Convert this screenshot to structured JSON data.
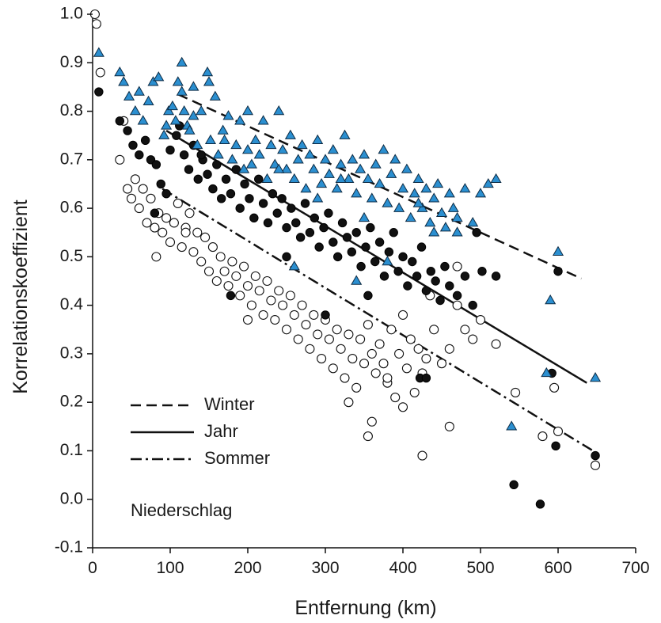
{
  "chart_data": {
    "type": "scatter",
    "title": "",
    "xlabel": "Entfernung (km)",
    "ylabel": "Korrelationskoeffizient",
    "xlim": [
      0,
      700
    ],
    "ylim": [
      -0.1,
      1.0
    ],
    "xticks": [
      "0",
      "100",
      "200",
      "300",
      "400",
      "500",
      "600",
      "700"
    ],
    "yticks": [
      "-0.1",
      "0.0",
      "0.1",
      "0.2",
      "0.3",
      "0.4",
      "0.5",
      "0.6",
      "0.7",
      "0.8",
      "0.9",
      "1.0"
    ],
    "grid": false,
    "legend": {
      "position": "lower-left",
      "entries": [
        {
          "label": "Winter",
          "style": "dashed"
        },
        {
          "label": "Jahr",
          "style": "solid"
        },
        {
          "label": "Sommer",
          "style": "dash-dot"
        }
      ]
    },
    "annotation": "Niederschlag",
    "colors": {
      "winter_marker": "#2b8fd0",
      "jahr_marker": "#111111",
      "sommer_marker": "#ffffff",
      "line": "#111111"
    },
    "trend_lines": [
      {
        "label": "Winter",
        "style": "dashed",
        "x": [
          110,
          630
        ],
        "y": [
          0.835,
          0.455
        ]
      },
      {
        "label": "Jahr",
        "style": "solid",
        "x": [
          95,
          637
        ],
        "y": [
          0.76,
          0.24
        ]
      },
      {
        "label": "Sommer",
        "style": "dash-dot",
        "x": [
          90,
          645
        ],
        "y": [
          0.64,
          0.1
        ]
      }
    ],
    "series": [
      {
        "label": "Winter",
        "marker": "triangle",
        "x": [
          8,
          35,
          40,
          47,
          55,
          60,
          65,
          72,
          78,
          85,
          92,
          98,
          103,
          107,
          110,
          115,
          118,
          122,
          125,
          130,
          135,
          140,
          148,
          152,
          158,
          162,
          168,
          175,
          180,
          185,
          190,
          195,
          200,
          205,
          210,
          215,
          220,
          225,
          230,
          235,
          240,
          245,
          250,
          255,
          260,
          265,
          270,
          275,
          280,
          285,
          290,
          295,
          300,
          305,
          310,
          315,
          320,
          325,
          330,
          335,
          340,
          345,
          350,
          355,
          360,
          365,
          370,
          375,
          380,
          385,
          390,
          395,
          400,
          405,
          410,
          415,
          420,
          425,
          430,
          435,
          440,
          445,
          450,
          455,
          460,
          465,
          470,
          480,
          490,
          500,
          510,
          520,
          115,
          150,
          260,
          340,
          380,
          540,
          585,
          590,
          600,
          648,
          95,
          130,
          170,
          240,
          290,
          350,
          420,
          470,
          200,
          320,
          440
        ],
        "y": [
          0.92,
          0.88,
          0.86,
          0.83,
          0.8,
          0.84,
          0.78,
          0.82,
          0.86,
          0.87,
          0.75,
          0.8,
          0.81,
          0.78,
          0.86,
          0.9,
          0.8,
          0.77,
          0.76,
          0.85,
          0.73,
          0.8,
          0.88,
          0.74,
          0.83,
          0.71,
          0.76,
          0.79,
          0.7,
          0.73,
          0.78,
          0.68,
          0.8,
          0.69,
          0.74,
          0.71,
          0.78,
          0.66,
          0.73,
          0.69,
          0.8,
          0.72,
          0.68,
          0.75,
          0.66,
          0.7,
          0.73,
          0.64,
          0.71,
          0.68,
          0.74,
          0.65,
          0.7,
          0.67,
          0.72,
          0.64,
          0.69,
          0.75,
          0.66,
          0.7,
          0.63,
          0.68,
          0.71,
          0.66,
          0.62,
          0.69,
          0.65,
          0.72,
          0.61,
          0.67,
          0.7,
          0.6,
          0.64,
          0.68,
          0.58,
          0.63,
          0.66,
          0.6,
          0.64,
          0.57,
          0.62,
          0.65,
          0.59,
          0.56,
          0.63,
          0.6,
          0.58,
          0.64,
          0.57,
          0.63,
          0.65,
          0.66,
          0.84,
          0.86,
          0.48,
          0.45,
          0.49,
          0.15,
          0.26,
          0.41,
          0.51,
          0.25,
          0.77,
          0.79,
          0.74,
          0.68,
          0.62,
          0.58,
          0.61,
          0.55,
          0.72,
          0.66,
          0.55
        ]
      },
      {
        "label": "Jahr",
        "marker": "filled-circle",
        "x": [
          8,
          35,
          45,
          52,
          60,
          68,
          75,
          82,
          88,
          95,
          100,
          108,
          112,
          118,
          124,
          130,
          136,
          142,
          148,
          155,
          160,
          166,
          172,
          178,
          185,
          190,
          196,
          202,
          208,
          214,
          220,
          226,
          232,
          238,
          244,
          250,
          256,
          262,
          268,
          274,
          280,
          286,
          292,
          298,
          304,
          310,
          316,
          322,
          328,
          334,
          340,
          346,
          352,
          358,
          364,
          370,
          376,
          382,
          388,
          394,
          400,
          406,
          412,
          418,
          424,
          430,
          436,
          442,
          448,
          454,
          460,
          470,
          480,
          490,
          495,
          502,
          520,
          543,
          577,
          592,
          597,
          600,
          648,
          80,
          140,
          178,
          250,
          300,
          355,
          422,
          430
        ],
        "y": [
          0.84,
          0.78,
          0.76,
          0.73,
          0.71,
          0.74,
          0.7,
          0.69,
          0.65,
          0.63,
          0.72,
          0.75,
          0.77,
          0.71,
          0.68,
          0.73,
          0.66,
          0.7,
          0.67,
          0.64,
          0.69,
          0.62,
          0.66,
          0.63,
          0.68,
          0.6,
          0.65,
          0.62,
          0.58,
          0.66,
          0.61,
          0.57,
          0.63,
          0.59,
          0.62,
          0.56,
          0.6,
          0.57,
          0.54,
          0.61,
          0.55,
          0.58,
          0.52,
          0.56,
          0.59,
          0.53,
          0.5,
          0.57,
          0.54,
          0.51,
          0.55,
          0.48,
          0.52,
          0.56,
          0.49,
          0.53,
          0.46,
          0.51,
          0.55,
          0.47,
          0.5,
          0.44,
          0.49,
          0.46,
          0.52,
          0.43,
          0.47,
          0.45,
          0.41,
          0.48,
          0.44,
          0.42,
          0.46,
          0.4,
          0.55,
          0.47,
          0.46,
          0.03,
          -0.01,
          0.26,
          0.11,
          0.47,
          0.09,
          0.59,
          0.71,
          0.42,
          0.5,
          0.38,
          0.42,
          0.25,
          0.25
        ]
      },
      {
        "label": "Sommer",
        "marker": "open-circle",
        "x": [
          3,
          5,
          10,
          35,
          40,
          45,
          50,
          55,
          60,
          65,
          70,
          75,
          80,
          85,
          90,
          95,
          100,
          105,
          110,
          115,
          120,
          125,
          130,
          135,
          140,
          145,
          150,
          155,
          160,
          165,
          170,
          175,
          180,
          185,
          190,
          195,
          200,
          205,
          210,
          215,
          220,
          225,
          230,
          235,
          240,
          245,
          250,
          255,
          260,
          265,
          270,
          275,
          280,
          285,
          290,
          295,
          300,
          305,
          310,
          315,
          320,
          325,
          330,
          335,
          340,
          345,
          350,
          355,
          360,
          365,
          370,
          375,
          380,
          385,
          390,
          395,
          400,
          405,
          410,
          415,
          420,
          425,
          430,
          435,
          440,
          450,
          460,
          470,
          480,
          490,
          500,
          520,
          545,
          580,
          595,
          600,
          648,
          82,
          120,
          200,
          330,
          355,
          360,
          380,
          400,
          425,
          460,
          470
        ],
        "y": [
          1.0,
          0.98,
          0.88,
          0.7,
          0.78,
          0.64,
          0.62,
          0.66,
          0.6,
          0.64,
          0.57,
          0.62,
          0.56,
          0.59,
          0.55,
          0.58,
          0.53,
          0.57,
          0.61,
          0.52,
          0.56,
          0.59,
          0.51,
          0.55,
          0.49,
          0.54,
          0.47,
          0.52,
          0.45,
          0.5,
          0.47,
          0.44,
          0.49,
          0.46,
          0.42,
          0.48,
          0.44,
          0.4,
          0.46,
          0.43,
          0.38,
          0.45,
          0.41,
          0.37,
          0.43,
          0.4,
          0.35,
          0.42,
          0.38,
          0.33,
          0.4,
          0.36,
          0.31,
          0.38,
          0.34,
          0.29,
          0.37,
          0.33,
          0.27,
          0.35,
          0.31,
          0.25,
          0.34,
          0.29,
          0.23,
          0.33,
          0.28,
          0.36,
          0.3,
          0.26,
          0.32,
          0.28,
          0.24,
          0.35,
          0.21,
          0.3,
          0.38,
          0.27,
          0.33,
          0.22,
          0.31,
          0.26,
          0.29,
          0.42,
          0.35,
          0.28,
          0.31,
          0.4,
          0.35,
          0.33,
          0.37,
          0.32,
          0.22,
          0.13,
          0.23,
          0.14,
          0.07,
          0.5,
          0.55,
          0.37,
          0.2,
          0.13,
          0.16,
          0.25,
          0.19,
          0.09,
          0.15,
          0.48
        ]
      }
    ]
  }
}
